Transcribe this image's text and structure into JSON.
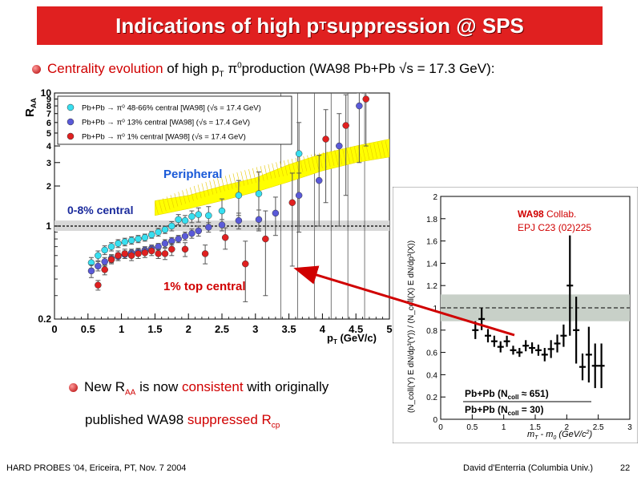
{
  "slide": {
    "title_main": "Indications of high p",
    "title_sub": "T",
    "title_tail": " suppression @ SPS",
    "bullet1": {
      "red_part": "Centrality evolution",
      "part2": " of high p",
      "sub": "T",
      "part3": " π",
      "sup": "0",
      "part4": "production (WA98 Pb+Pb √s = 17.3 GeV):"
    },
    "bullet2": {
      "p1": "New R",
      "sub1": "AA",
      "p2": " is now ",
      "red1": "consistent",
      "p3": " with originally",
      "p4": "published WA98 ",
      "red2": "suppressed R",
      "sub2": "cp"
    },
    "footer_left": "HARD PROBES '04, Ericeira, PT, Nov. 7 2004",
    "footer_right": "David d'Enterria (Columbia Univ.)",
    "page_number": "22"
  },
  "chart_data": [
    {
      "type": "scatter",
      "ylog": true,
      "xlim": [
        0,
        5
      ],
      "ylim": [
        0.2,
        10
      ],
      "xlabel": "p",
      "xlabel_sub": "T",
      "xlabel_unit": " (GeV/c)",
      "ylabel": "R",
      "ylabel_sub": "AA",
      "x_ticks": [
        "0",
        "0.5",
        "1",
        "1.5",
        "2",
        "2.5",
        "3",
        "3.5",
        "4",
        "4.5",
        "5"
      ],
      "y_ticks": [
        0.2,
        1,
        2,
        3,
        4,
        5,
        6,
        7,
        8,
        9,
        10
      ],
      "y_tick_labels": [
        "0.2",
        "1",
        "2",
        "3",
        "4",
        "5",
        "6",
        "7",
        "8",
        "9",
        "10"
      ],
      "legend": [
        "Pb+Pb → π⁰ 48-66% central [WA98] (√s = 17.4 GeV)",
        "Pb+Pb → π⁰ 13% central [WA98] (√s = 17.4 GeV)",
        "Pb+Pb → π⁰ 1% central [WA98] (√s = 17.4 GeV)"
      ],
      "annotations": [
        "Peripheral",
        "0-8% central",
        "1% top central"
      ],
      "band_color": "#ffff00",
      "series": [
        {
          "name": "Pb+Pb → π⁰ 48-66% central [WA98] (√s = 17.4 GeV)",
          "color": "#38dff0",
          "points": [
            [
              0.55,
              0.53,
              0.05
            ],
            [
              0.65,
              0.6,
              0.05
            ],
            [
              0.75,
              0.66,
              0.05
            ],
            [
              0.85,
              0.7,
              0.05
            ],
            [
              0.95,
              0.74,
              0.05
            ],
            [
              1.05,
              0.76,
              0.05
            ],
            [
              1.15,
              0.78,
              0.05
            ],
            [
              1.25,
              0.8,
              0.05
            ],
            [
              1.35,
              0.82,
              0.05
            ],
            [
              1.45,
              0.86,
              0.05
            ],
            [
              1.55,
              0.9,
              0.06
            ],
            [
              1.65,
              0.94,
              0.06
            ],
            [
              1.75,
              1.0,
              0.08
            ],
            [
              1.85,
              1.12,
              0.1
            ],
            [
              1.95,
              1.1,
              0.1
            ],
            [
              2.05,
              1.18,
              0.12
            ],
            [
              2.15,
              1.22,
              0.15
            ],
            [
              2.3,
              1.2,
              0.2
            ],
            [
              2.5,
              1.3,
              0.3
            ],
            [
              2.75,
              1.7,
              0.5
            ],
            [
              3.05,
              1.75,
              0.8
            ],
            [
              3.65,
              3.5,
              2.5
            ]
          ]
        },
        {
          "name": "Pb+Pb → π⁰ 13% central [WA98] (√s = 17.4 GeV)",
          "color": "#5a5ad8",
          "points": [
            [
              0.55,
              0.46,
              0.05
            ],
            [
              0.65,
              0.5,
              0.04
            ],
            [
              0.75,
              0.54,
              0.04
            ],
            [
              0.85,
              0.57,
              0.04
            ],
            [
              0.95,
              0.59,
              0.04
            ],
            [
              1.05,
              0.61,
              0.04
            ],
            [
              1.15,
              0.63,
              0.04
            ],
            [
              1.25,
              0.64,
              0.04
            ],
            [
              1.35,
              0.66,
              0.04
            ],
            [
              1.45,
              0.68,
              0.04
            ],
            [
              1.55,
              0.7,
              0.04
            ],
            [
              1.65,
              0.74,
              0.05
            ],
            [
              1.75,
              0.77,
              0.05
            ],
            [
              1.85,
              0.8,
              0.05
            ],
            [
              1.95,
              0.84,
              0.06
            ],
            [
              2.05,
              0.88,
              0.07
            ],
            [
              2.15,
              0.92,
              0.08
            ],
            [
              2.3,
              0.98,
              0.08
            ],
            [
              2.5,
              1.02,
              0.1
            ],
            [
              2.75,
              1.1,
              0.15
            ],
            [
              3.05,
              1.12,
              0.2
            ],
            [
              3.3,
              1.25,
              0.4
            ],
            [
              3.65,
              1.7,
              0.8
            ],
            [
              3.95,
              2.2,
              1.2
            ],
            [
              4.25,
              4.0,
              3.0
            ],
            [
              4.55,
              8.0,
              5.0
            ]
          ]
        },
        {
          "name": "Pb+Pb → π⁰ 1% central [WA98] (√s = 17.4 GeV)",
          "color": "#e02020",
          "points": [
            [
              0.65,
              0.36,
              0.03
            ],
            [
              0.75,
              0.47,
              0.04
            ],
            [
              0.85,
              0.56,
              0.04
            ],
            [
              0.95,
              0.6,
              0.05
            ],
            [
              1.05,
              0.62,
              0.05
            ],
            [
              1.15,
              0.6,
              0.05
            ],
            [
              1.25,
              0.62,
              0.05
            ],
            [
              1.35,
              0.63,
              0.05
            ],
            [
              1.45,
              0.65,
              0.05
            ],
            [
              1.55,
              0.62,
              0.05
            ],
            [
              1.65,
              0.62,
              0.06
            ],
            [
              1.75,
              0.67,
              0.07
            ],
            [
              1.95,
              0.67,
              0.08
            ],
            [
              2.25,
              0.62,
              0.1
            ],
            [
              2.55,
              0.82,
              0.15
            ],
            [
              2.85,
              0.52,
              0.25
            ],
            [
              3.15,
              0.8,
              0.5
            ],
            [
              3.55,
              1.5,
              1.0
            ],
            [
              4.05,
              4.5,
              3.0
            ],
            [
              4.35,
              5.7,
              4.0
            ],
            [
              4.65,
              9.0,
              5.0
            ]
          ]
        }
      ]
    },
    {
      "type": "scatter",
      "xlim": [
        0,
        3
      ],
      "ylim": [
        0,
        2
      ],
      "xlabel": "m",
      "xlabel_sub": "T",
      "xlabel_rest": " - m",
      "xlabel_sub2": "0",
      "xlabel_unit": " (GeV/c",
      "xlabel_sup": "2",
      "xlabel_end": ")",
      "ylabel": "(N_coll(Y) E dN/dp³(Y)) / (N_coll(X) E dN/dp³(X))",
      "x_ticks": [
        "0",
        "0.5",
        "1",
        "1.5",
        "2",
        "2.5",
        "3"
      ],
      "y_ticks": [
        "0",
        "0.2",
        "0.4",
        "0.6",
        "0.8",
        "1",
        "1.2",
        "1.4",
        "1.6",
        "1.8",
        "2"
      ],
      "collab": "WA98",
      "collab_rest": " Collab.",
      "journal": "EPJ C23 (02)225",
      "ratio_num": "Pb+Pb (N",
      "ratio_num_sub": "coll",
      "ratio_num_val": " ≈ 651)",
      "ratio_den": "Pb+Pb (N",
      "ratio_den_sub": "coll",
      "ratio_den_val": " = 30)",
      "points": [
        [
          0.55,
          0.8,
          0.08
        ],
        [
          0.65,
          0.9,
          0.1
        ],
        [
          0.75,
          0.75,
          0.06
        ],
        [
          0.85,
          0.7,
          0.05
        ],
        [
          0.95,
          0.65,
          0.05
        ],
        [
          1.05,
          0.7,
          0.05
        ],
        [
          1.15,
          0.62,
          0.04
        ],
        [
          1.25,
          0.6,
          0.04
        ],
        [
          1.35,
          0.66,
          0.05
        ],
        [
          1.45,
          0.64,
          0.05
        ],
        [
          1.55,
          0.62,
          0.05
        ],
        [
          1.65,
          0.58,
          0.06
        ],
        [
          1.75,
          0.63,
          0.08
        ],
        [
          1.85,
          0.68,
          0.08
        ],
        [
          1.95,
          0.75,
          0.1
        ],
        [
          2.05,
          1.2,
          0.45
        ],
        [
          2.15,
          0.8,
          0.3
        ],
        [
          2.25,
          0.47,
          0.12
        ],
        [
          2.35,
          0.58,
          0.25
        ],
        [
          2.45,
          0.48,
          0.2
        ],
        [
          2.55,
          0.48,
          0.2
        ]
      ]
    }
  ]
}
